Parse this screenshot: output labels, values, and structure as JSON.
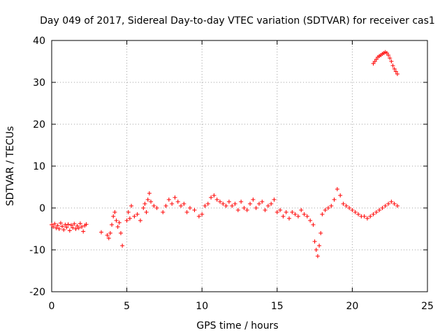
{
  "colors": {
    "series": "#ff0000",
    "axis": "#000000",
    "grid": "#a0a0a0",
    "background": "#ffffff"
  },
  "chart_data": {
    "type": "scatter",
    "title": "Day 049 of 2017, Sidereal Day-to-day VTEC variation (SDTVAR) for receiver cas1",
    "xlabel": "GPS time / hours",
    "ylabel": "SDTVAR / TECUs",
    "xlim": [
      0,
      25
    ],
    "ylim": [
      -20,
      40
    ],
    "xticks": [
      0,
      5,
      10,
      15,
      20,
      25
    ],
    "yticks": [
      -20,
      -10,
      0,
      10,
      20,
      30,
      40
    ],
    "xtick_labels": [
      "0",
      "5",
      "10",
      "15",
      "20",
      "25"
    ],
    "ytick_labels": [
      "-20",
      "-10",
      "0",
      "10",
      "20",
      "30",
      "40"
    ],
    "grid": true,
    "marker": "+",
    "series": [
      {
        "name": "SDTVAR",
        "color": "#ff0000",
        "x": [
          0.0,
          0.1,
          0.2,
          0.3,
          0.4,
          0.5,
          0.6,
          0.7,
          0.8,
          0.9,
          1.0,
          1.1,
          1.2,
          1.3,
          1.4,
          1.5,
          1.6,
          1.7,
          1.8,
          1.9,
          2.0,
          2.1,
          2.2,
          2.3,
          3.3,
          3.7,
          3.8,
          3.9,
          4.0,
          4.1,
          4.2,
          4.3,
          4.4,
          4.5,
          4.6,
          4.7,
          5.0,
          5.1,
          5.2,
          5.3,
          5.5,
          5.7,
          5.9,
          6.1,
          6.2,
          6.3,
          6.4,
          6.5,
          6.6,
          6.8,
          7.0,
          7.4,
          7.6,
          7.8,
          8.0,
          8.2,
          8.4,
          8.6,
          8.8,
          9.0,
          9.2,
          9.5,
          9.8,
          10.0,
          10.2,
          10.4,
          10.6,
          10.8,
          11.0,
          11.2,
          11.4,
          11.6,
          11.8,
          12.0,
          12.2,
          12.4,
          12.6,
          12.8,
          13.0,
          13.2,
          13.4,
          13.6,
          13.8,
          14.0,
          14.2,
          14.4,
          14.6,
          14.8,
          15.0,
          15.2,
          15.4,
          15.6,
          15.8,
          16.0,
          16.2,
          16.4,
          16.6,
          16.8,
          17.0,
          17.2,
          17.4,
          17.5,
          17.6,
          17.7,
          17.8,
          17.9,
          18.0,
          18.2,
          18.4,
          18.6,
          18.8,
          19.0,
          19.2,
          19.4,
          19.6,
          19.8,
          20.0,
          20.2,
          20.4,
          20.6,
          20.8,
          21.0,
          21.2,
          21.4,
          21.6,
          21.8,
          22.0,
          22.2,
          22.4,
          22.6,
          22.8,
          23.0,
          21.4,
          21.5,
          21.6,
          21.7,
          21.8,
          21.9,
          22.0,
          22.1,
          22.2,
          22.3,
          22.4,
          22.5,
          22.6,
          22.7,
          22.8,
          22.9,
          23.0
        ],
        "y": [
          -4.0,
          -4.5,
          -3.8,
          -4.8,
          -4.2,
          -5.0,
          -3.6,
          -4.4,
          -5.2,
          -4.0,
          -4.6,
          -3.9,
          -5.4,
          -4.1,
          -4.7,
          -3.8,
          -5.0,
          -4.3,
          -4.8,
          -3.7,
          -4.5,
          -5.6,
          -4.2,
          -3.9,
          -5.8,
          -6.5,
          -7.2,
          -6.0,
          -4.0,
          -2.0,
          -1.0,
          -3.0,
          -4.5,
          -3.5,
          -6.0,
          -9.0,
          -3.0,
          -1.0,
          -2.5,
          0.5,
          -2.0,
          -1.5,
          -3.0,
          0.0,
          1.0,
          -1.0,
          2.0,
          3.5,
          1.5,
          0.5,
          0.0,
          -1.0,
          0.5,
          2.0,
          1.0,
          2.5,
          1.5,
          0.5,
          1.0,
          -1.0,
          0.0,
          -0.5,
          -2.0,
          -1.5,
          0.5,
          1.0,
          2.5,
          3.0,
          2.0,
          1.5,
          1.0,
          0.5,
          1.5,
          0.5,
          1.0,
          -0.5,
          1.5,
          0.0,
          -0.5,
          1.0,
          2.0,
          0.0,
          1.0,
          1.5,
          -0.5,
          0.5,
          1.0,
          2.0,
          -1.0,
          -0.5,
          -2.0,
          -1.0,
          -2.5,
          -1.0,
          -1.5,
          -2.0,
          -0.5,
          -1.5,
          -2.0,
          -3.0,
          -4.0,
          -8.0,
          -10.0,
          -11.5,
          -9.0,
          -6.0,
          -1.5,
          -0.5,
          0.0,
          0.5,
          2.0,
          4.5,
          3.0,
          1.0,
          0.5,
          0.0,
          -0.5,
          -1.0,
          -1.5,
          -2.0,
          -2.0,
          -2.5,
          -2.0,
          -1.5,
          -1.0,
          -0.5,
          0.0,
          0.5,
          1.0,
          1.5,
          1.0,
          0.5,
          34.5,
          35.0,
          35.5,
          36.0,
          36.3,
          36.5,
          36.8,
          37.0,
          37.2,
          37.0,
          36.5,
          35.8,
          35.0,
          34.0,
          33.2,
          32.6,
          32.0
        ]
      }
    ]
  }
}
